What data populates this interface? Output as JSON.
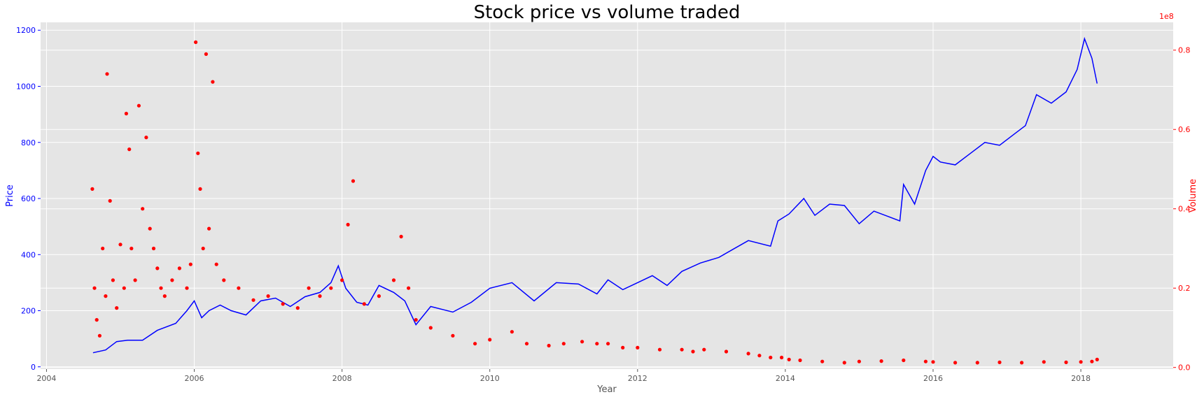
{
  "chart_data": {
    "type": "line+scatter",
    "title": "Stock price vs volume traded",
    "xlabel": "Year",
    "ylabel_left": "Price",
    "ylabel_right": "Volume",
    "right_axis_offset_label": "1e8",
    "xlim": [
      2003.92,
      2019.25
    ],
    "ylim_left": [
      -8,
      1228
    ],
    "ylim_right": [
      -0.004,
      0.87
    ],
    "x_ticks": [
      2004,
      2006,
      2008,
      2010,
      2012,
      2014,
      2016,
      2018
    ],
    "x_tick_labels": [
      "2004",
      "2006",
      "2008",
      "2010",
      "2012",
      "2014",
      "2016",
      "2018"
    ],
    "y_left_ticks": [
      0,
      200,
      400,
      600,
      800,
      1000,
      1200
    ],
    "y_left_tick_labels": [
      "0",
      "200",
      "400",
      "600",
      "800",
      "1000",
      "1200"
    ],
    "y_right_ticks": [
      0.0,
      0.2,
      0.4,
      0.6,
      0.8
    ],
    "y_right_tick_labels": [
      "0.0",
      "0.2",
      "0.4",
      "0.6",
      "0.8"
    ],
    "grid": true,
    "background": "#e5e5e5",
    "series": [
      {
        "axis": "left",
        "type": "line",
        "color": "#0000ff",
        "x": [
          2004.63,
          2004.8,
          2004.95,
          2005.1,
          2005.3,
          2005.5,
          2005.75,
          2005.9,
          2006.0,
          2006.1,
          2006.2,
          2006.35,
          2006.5,
          2006.7,
          2006.9,
          2007.1,
          2007.3,
          2007.5,
          2007.7,
          2007.85,
          2007.95,
          2008.05,
          2008.2,
          2008.35,
          2008.5,
          2008.7,
          2008.85,
          2009.0,
          2009.2,
          2009.5,
          2009.75,
          2010.0,
          2010.3,
          2010.6,
          2010.9,
          2011.2,
          2011.45,
          2011.6,
          2011.8,
          2012.0,
          2012.2,
          2012.4,
          2012.6,
          2012.85,
          2013.1,
          2013.3,
          2013.5,
          2013.8,
          2013.9,
          2014.05,
          2014.25,
          2014.4,
          2014.6,
          2014.8,
          2015.0,
          2015.2,
          2015.4,
          2015.55,
          2015.6,
          2015.75,
          2015.9,
          2016.0,
          2016.1,
          2016.3,
          2016.5,
          2016.7,
          2016.9,
          2017.1,
          2017.25,
          2017.4,
          2017.6,
          2017.8,
          2017.95,
          2018.05,
          2018.15,
          2018.22
        ],
        "y": [
          50,
          60,
          90,
          95,
          95,
          130,
          155,
          200,
          235,
          175,
          200,
          220,
          200,
          185,
          235,
          245,
          215,
          250,
          265,
          300,
          360,
          280,
          230,
          220,
          290,
          265,
          235,
          150,
          215,
          195,
          230,
          280,
          300,
          235,
          300,
          295,
          260,
          310,
          275,
          300,
          325,
          290,
          340,
          370,
          390,
          420,
          450,
          430,
          520,
          545,
          600,
          540,
          580,
          575,
          510,
          555,
          535,
          520,
          650,
          580,
          700,
          750,
          730,
          720,
          760,
          800,
          790,
          830,
          860,
          970,
          940,
          980,
          1060,
          1170,
          1100,
          1010
        ]
      },
      {
        "axis": "right",
        "type": "scatter",
        "color": "#ff0000",
        "x": [
          2004.62,
          2004.65,
          2004.68,
          2004.72,
          2004.76,
          2004.8,
          2004.82,
          2004.86,
          2004.9,
          2004.95,
          2005.0,
          2005.05,
          2005.08,
          2005.12,
          2005.15,
          2005.2,
          2005.25,
          2005.3,
          2005.35,
          2005.4,
          2005.45,
          2005.5,
          2005.55,
          2005.6,
          2005.7,
          2005.8,
          2005.9,
          2005.95,
          2006.02,
          2006.05,
          2006.08,
          2006.12,
          2006.16,
          2006.2,
          2006.25,
          2006.3,
          2006.4,
          2006.6,
          2006.8,
          2007.0,
          2007.2,
          2007.4,
          2007.55,
          2007.7,
          2007.85,
          2008.0,
          2008.08,
          2008.15,
          2008.3,
          2008.5,
          2008.7,
          2008.8,
          2008.9,
          2009.0,
          2009.2,
          2009.5,
          2009.8,
          2010.0,
          2010.3,
          2010.5,
          2010.8,
          2011.0,
          2011.25,
          2011.45,
          2011.6,
          2011.8,
          2012.0,
          2012.3,
          2012.6,
          2012.75,
          2012.9,
          2013.2,
          2013.5,
          2013.65,
          2013.8,
          2013.95,
          2014.05,
          2014.2,
          2014.5,
          2014.8,
          2015.0,
          2015.3,
          2015.6,
          2015.9,
          2016.0,
          2016.3,
          2016.6,
          2016.9,
          2017.2,
          2017.5,
          2017.8,
          2018.0,
          2018.15,
          2018.22
        ],
        "y": [
          0.45,
          0.2,
          0.12,
          0.08,
          0.3,
          0.18,
          0.74,
          0.42,
          0.22,
          0.15,
          0.31,
          0.2,
          0.64,
          0.55,
          0.3,
          0.22,
          0.66,
          0.4,
          0.58,
          0.35,
          0.3,
          0.25,
          0.2,
          0.18,
          0.22,
          0.25,
          0.2,
          0.26,
          0.82,
          0.54,
          0.45,
          0.3,
          0.79,
          0.35,
          0.72,
          0.26,
          0.22,
          0.2,
          0.17,
          0.18,
          0.16,
          0.15,
          0.2,
          0.18,
          0.2,
          0.22,
          0.36,
          0.47,
          0.16,
          0.18,
          0.22,
          0.33,
          0.2,
          0.12,
          0.1,
          0.08,
          0.06,
          0.07,
          0.09,
          0.06,
          0.055,
          0.06,
          0.065,
          0.06,
          0.06,
          0.05,
          0.05,
          0.045,
          0.045,
          0.04,
          0.045,
          0.04,
          0.035,
          0.03,
          0.025,
          0.025,
          0.02,
          0.018,
          0.015,
          0.012,
          0.015,
          0.016,
          0.018,
          0.015,
          0.014,
          0.012,
          0.012,
          0.013,
          0.012,
          0.014,
          0.013,
          0.014,
          0.015,
          0.02
        ]
      }
    ]
  }
}
